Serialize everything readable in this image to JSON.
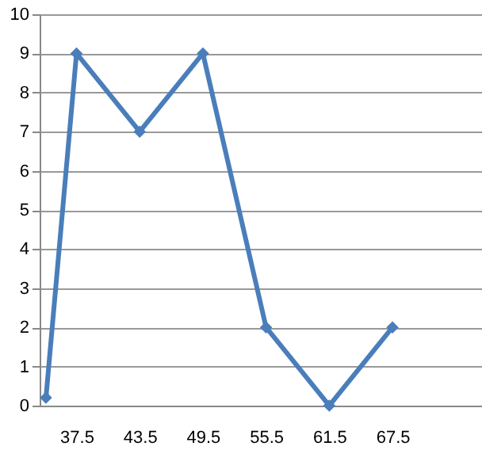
{
  "chart_data": {
    "type": "line",
    "x": [
      34.6,
      37.5,
      43.5,
      49.5,
      55.5,
      61.5,
      67.5
    ],
    "series": [
      {
        "color": "#4a7ebb",
        "values": [
          0.2,
          9,
          7,
          9,
          2,
          0,
          2
        ]
      }
    ],
    "xlim": [
      34,
      76
    ],
    "xticks": [
      37.5,
      43.5,
      49.5,
      55.5,
      61.5,
      67.5
    ],
    "ylim": [
      0,
      10
    ],
    "yticks": [
      0,
      1,
      2,
      3,
      4,
      5,
      6,
      7,
      8,
      9,
      10
    ],
    "grid": "y",
    "marker": "diamond",
    "line_style": "solid"
  }
}
